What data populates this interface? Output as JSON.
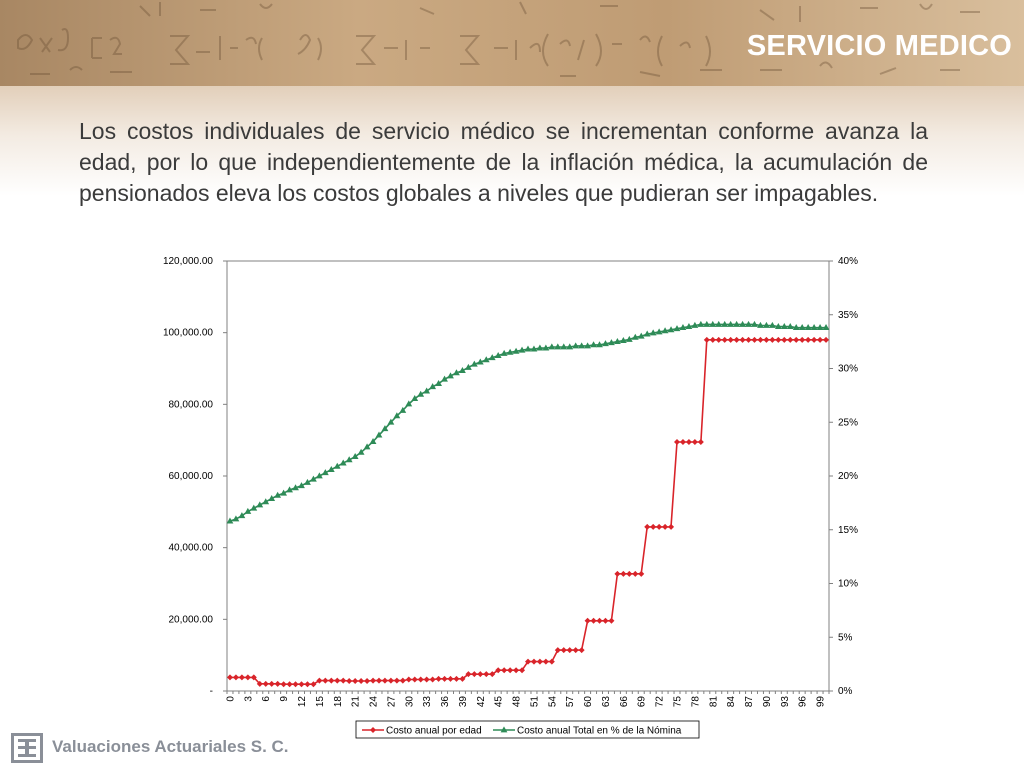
{
  "slide": {
    "title": "SERVICIO MEDICO",
    "body": "Los costos individuales de servicio médico se incrementan conforme avanza la edad, por lo que independientemente de la inflación médica, la acumulación de pensionados eleva los costos globales a niveles que pudieran ser impagables."
  },
  "footer": {
    "company": "Valuaciones Actuariales S. C."
  },
  "colors": {
    "series1": "#d9242a",
    "series2": "#2e8b57",
    "title": "#ffffff",
    "text": "#3b3b3b"
  },
  "chart_data": {
    "type": "line",
    "x": [
      0,
      1,
      2,
      3,
      4,
      5,
      6,
      7,
      8,
      9,
      10,
      11,
      12,
      13,
      14,
      15,
      16,
      17,
      18,
      19,
      20,
      21,
      22,
      23,
      24,
      25,
      26,
      27,
      28,
      29,
      30,
      31,
      32,
      33,
      34,
      35,
      36,
      37,
      38,
      39,
      40,
      41,
      42,
      43,
      44,
      45,
      46,
      47,
      48,
      49,
      50,
      51,
      52,
      53,
      54,
      55,
      56,
      57,
      58,
      59,
      60,
      61,
      62,
      63,
      64,
      65,
      66,
      67,
      68,
      69,
      70,
      71,
      72,
      73,
      74,
      75,
      76,
      77,
      78,
      79,
      80,
      81,
      82,
      83,
      84,
      85,
      86,
      87,
      88,
      89,
      90,
      91,
      92,
      93,
      94,
      95,
      96,
      97,
      98,
      99,
      100
    ],
    "x_tick_labels": [
      "0",
      "3",
      "6",
      "9",
      "12",
      "15",
      "18",
      "21",
      "24",
      "27",
      "30",
      "33",
      "36",
      "39",
      "42",
      "45",
      "48",
      "51",
      "54",
      "57",
      "60",
      "63",
      "66",
      "69",
      "72",
      "75",
      "78",
      "81",
      "84",
      "87",
      "90",
      "93",
      "96",
      "99"
    ],
    "y_left_ticks": [
      "-",
      "20,000.00",
      "40,000.00",
      "60,000.00",
      "80,000.00",
      "100,000.00",
      "120,000.00"
    ],
    "y_left_lim": [
      0,
      120000
    ],
    "y_right_ticks": [
      "0%",
      "5%",
      "10%",
      "15%",
      "20%",
      "25%",
      "30%",
      "35%",
      "40%"
    ],
    "y_right_lim": [
      0,
      0.4
    ],
    "grid": false,
    "legend_position": "bottom",
    "series": [
      {
        "name": "Costo anual por edad",
        "axis": "left",
        "marker": "diamond",
        "values": [
          3800,
          3800,
          3800,
          3800,
          3800,
          2000,
          2000,
          2000,
          2000,
          1900,
          1900,
          1900,
          1900,
          1900,
          1900,
          2900,
          2900,
          2900,
          2900,
          2900,
          2800,
          2800,
          2800,
          2800,
          2900,
          2900,
          2900,
          2900,
          2900,
          2900,
          3200,
          3200,
          3200,
          3200,
          3200,
          3400,
          3400,
          3400,
          3400,
          3400,
          4700,
          4700,
          4700,
          4700,
          4700,
          5800,
          5800,
          5800,
          5800,
          5800,
          8200,
          8200,
          8200,
          8200,
          8200,
          11400,
          11400,
          11400,
          11400,
          11400,
          19600,
          19600,
          19600,
          19600,
          19600,
          32700,
          32700,
          32700,
          32700,
          32700,
          45800,
          45800,
          45800,
          45800,
          45800,
          69500,
          69500,
          69500,
          69500,
          69500,
          98000,
          98000,
          98000,
          98000,
          98000,
          98000,
          98000,
          98000,
          98000,
          98000,
          98000,
          98000,
          98000,
          98000,
          98000,
          98000,
          98000,
          98000,
          98000,
          98000,
          98000
        ]
      },
      {
        "name": "Costo anual Total en % de la Nómina",
        "axis": "right",
        "marker": "triangle",
        "values": [
          0.158,
          0.16,
          0.163,
          0.167,
          0.17,
          0.173,
          0.176,
          0.179,
          0.182,
          0.184,
          0.187,
          0.189,
          0.191,
          0.194,
          0.197,
          0.2,
          0.203,
          0.206,
          0.209,
          0.212,
          0.215,
          0.218,
          0.222,
          0.227,
          0.232,
          0.238,
          0.244,
          0.25,
          0.256,
          0.261,
          0.267,
          0.272,
          0.276,
          0.279,
          0.283,
          0.286,
          0.29,
          0.293,
          0.296,
          0.298,
          0.301,
          0.304,
          0.306,
          0.308,
          0.31,
          0.312,
          0.314,
          0.315,
          0.316,
          0.317,
          0.318,
          0.318,
          0.319,
          0.319,
          0.32,
          0.32,
          0.32,
          0.32,
          0.321,
          0.321,
          0.321,
          0.322,
          0.322,
          0.323,
          0.324,
          0.325,
          0.326,
          0.327,
          0.329,
          0.33,
          0.332,
          0.333,
          0.334,
          0.335,
          0.336,
          0.337,
          0.338,
          0.339,
          0.34,
          0.341,
          0.341,
          0.341,
          0.341,
          0.341,
          0.341,
          0.341,
          0.341,
          0.341,
          0.341,
          0.34,
          0.34,
          0.34,
          0.339,
          0.339,
          0.339,
          0.338,
          0.338,
          0.338,
          0.338,
          0.338,
          0.338
        ]
      }
    ]
  }
}
